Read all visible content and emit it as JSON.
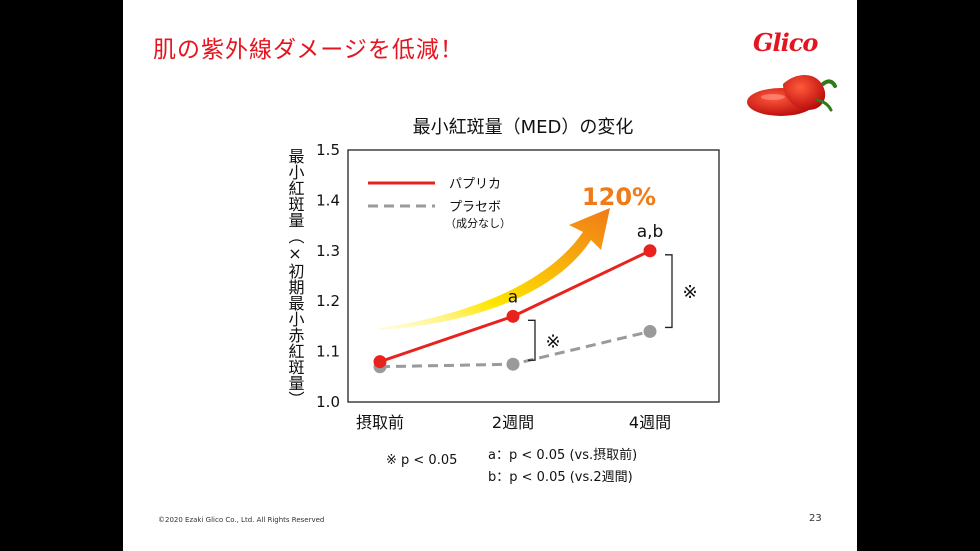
{
  "slide": {
    "title": "肌の紫外線ダメージを低減！",
    "logo": "Glico",
    "copyright": "©2020 Ezaki Glico Co., Ltd. All Rights Reserved",
    "page_number": "23"
  },
  "colors": {
    "paprika": "#e8231d",
    "placebo": "#9a9a9a",
    "title": "#e4151f",
    "arrow_start": "#ffe600",
    "arrow_end": "#f07a18"
  },
  "icons": [
    "red-pepper-icon"
  ],
  "chart_data": {
    "type": "line",
    "title": "最小紅斑量（MED）の変化",
    "ylabel": "最小紅斑量（×初期最小赤紅斑量）",
    "xlabel": "",
    "categories": [
      "摂取前",
      "2週間",
      "4週間"
    ],
    "ylim": [
      1.0,
      1.5
    ],
    "yticks": [
      "1.0",
      "1.1",
      "1.2",
      "1.3",
      "1.4",
      "1.5"
    ],
    "grid": false,
    "legend_position": "top-left",
    "series": [
      {
        "name": "パプリカ",
        "values": [
          1.08,
          1.17,
          1.3
        ],
        "color": "#e8231d",
        "dash": "solid"
      },
      {
        "name": "プラセボ",
        "sublabel": "（成分なし）",
        "values": [
          1.07,
          1.075,
          1.14
        ],
        "color": "#9a9a9a",
        "dash": "dashed"
      }
    ],
    "point_labels": [
      {
        "series": 0,
        "index": 1,
        "text": "a"
      },
      {
        "series": 0,
        "index": 2,
        "text": "a,b"
      }
    ],
    "significance_brackets": [
      {
        "index": 1,
        "text": "※"
      },
      {
        "index": 2,
        "text": "※"
      }
    ],
    "callout": "120%",
    "footnotes": {
      "asterisk": "※ p < 0.05",
      "a": "a：p < 0.05 (vs.摂取前)",
      "b": "b：p < 0.05 (vs.2週間)"
    }
  }
}
